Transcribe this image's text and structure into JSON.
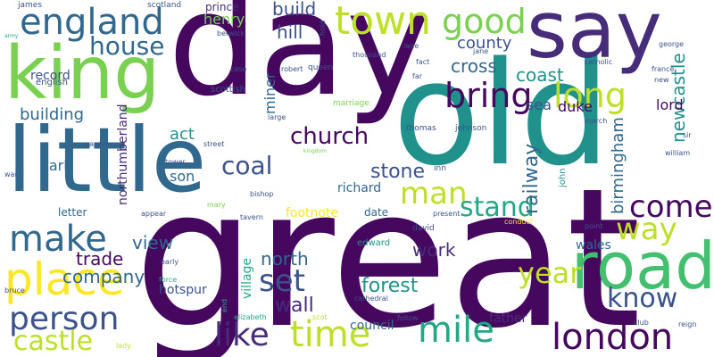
{
  "palette": {
    "dark_purple": "#46085f",
    "violet": "#472c7a",
    "indigo": "#3b528b",
    "slate_blue": "#31688e",
    "teal": "#21918c",
    "sea_green": "#22a884",
    "green": "#44bf70",
    "light_green": "#7ad151",
    "lime": "#bddf26",
    "yellow": "#fde725"
  },
  "words": [
    {
      "text": "great",
      "color": "#46085f"
    },
    {
      "text": "day",
      "color": "#46085f"
    },
    {
      "text": "old",
      "color": "#21918c"
    },
    {
      "text": "little",
      "color": "#31688e"
    },
    {
      "text": "say",
      "color": "#472c7a"
    },
    {
      "text": "king",
      "color": "#7ad151"
    },
    {
      "text": "road",
      "color": "#44bf70"
    },
    {
      "text": "england",
      "color": "#31688e"
    },
    {
      "text": "town",
      "color": "#bddf26"
    },
    {
      "text": "good",
      "color": "#7ad151"
    },
    {
      "text": "house",
      "color": "#31688e"
    },
    {
      "text": "bring",
      "color": "#46085f"
    },
    {
      "text": "long",
      "color": "#bddf26"
    },
    {
      "text": "make",
      "color": "#31688e"
    },
    {
      "text": "place",
      "color": "#fde725"
    },
    {
      "text": "person",
      "color": "#3b528b"
    },
    {
      "text": "castle",
      "color": "#bddf26"
    },
    {
      "text": "like",
      "color": "#472c7a"
    },
    {
      "text": "time",
      "color": "#bddf26"
    },
    {
      "text": "mile",
      "color": "#22a884"
    },
    {
      "text": "london",
      "color": "#46085f"
    },
    {
      "text": "know",
      "color": "#3b528b"
    },
    {
      "text": "come",
      "color": "#46085f"
    },
    {
      "text": "way",
      "color": "#bddf26"
    },
    {
      "text": "church",
      "color": "#46085f"
    },
    {
      "text": "man",
      "color": "#bddf26"
    },
    {
      "text": "stand",
      "color": "#22a884"
    },
    {
      "text": "set",
      "color": "#3b528b"
    },
    {
      "text": "year",
      "color": "#bddf26"
    },
    {
      "text": "coal",
      "color": "#3b528b"
    },
    {
      "text": "wall",
      "color": "#472c7a"
    },
    {
      "text": "stone",
      "color": "#3b528b"
    },
    {
      "text": "forest",
      "color": "#21918c"
    },
    {
      "text": "north",
      "color": "#31688e"
    },
    {
      "text": "work",
      "color": "#472c7a"
    },
    {
      "text": "view",
      "color": "#31688e"
    },
    {
      "text": "company",
      "color": "#31688e"
    },
    {
      "text": "trade",
      "color": "#46085f"
    },
    {
      "text": "railway",
      "color": "#31688e"
    },
    {
      "text": "cross",
      "color": "#31688e"
    },
    {
      "text": "coast",
      "color": "#21918c"
    },
    {
      "text": "newcastle",
      "color": "#21918c"
    },
    {
      "text": "birmingham",
      "color": "#31688e"
    },
    {
      "text": "county",
      "color": "#3b528b"
    },
    {
      "text": "build",
      "color": "#3b528b"
    },
    {
      "text": "hill",
      "color": "#3b528b"
    },
    {
      "text": "building",
      "color": "#31688e"
    },
    {
      "text": "record",
      "color": "#3b528b"
    },
    {
      "text": "miner",
      "color": "#31688e"
    },
    {
      "text": "henry",
      "color": "#7ad151"
    },
    {
      "text": "prince",
      "color": "#472c7a"
    },
    {
      "text": "act",
      "color": "#21918c"
    },
    {
      "text": "earl",
      "color": "#31688e"
    },
    {
      "text": "son",
      "color": "#31688e"
    },
    {
      "text": "lord",
      "color": "#46085f"
    },
    {
      "text": "sea",
      "color": "#3b528b"
    },
    {
      "text": "duke",
      "color": "#46085f"
    },
    {
      "text": "northumberland",
      "color": "#472c7a"
    },
    {
      "text": "village",
      "color": "#22a884"
    },
    {
      "text": "hotspur",
      "color": "#3b528b"
    },
    {
      "text": "letter",
      "color": "#31688e"
    },
    {
      "text": "footnote",
      "color": "#fde725"
    },
    {
      "text": "richard",
      "color": "#31688e"
    },
    {
      "text": "date",
      "color": "#31688e"
    },
    {
      "text": "council",
      "color": "#31688e"
    },
    {
      "text": "father",
      "color": "#472c7a"
    },
    {
      "text": "wales",
      "color": "#31688e"
    },
    {
      "text": "edward",
      "color": "#21918c"
    },
    {
      "text": "scottish",
      "color": "#3b528b"
    },
    {
      "text": "english",
      "color": "#3b528b"
    },
    {
      "text": "james",
      "color": "#3b528b"
    },
    {
      "text": "scotland",
      "color": "#3b528b"
    },
    {
      "text": "berwick",
      "color": "#3b528b"
    },
    {
      "text": "queen",
      "color": "#3b528b"
    },
    {
      "text": "robert",
      "color": "#3b528b"
    },
    {
      "text": "marriage",
      "color": "#7ad151"
    },
    {
      "text": "thomas",
      "color": "#3b528b"
    },
    {
      "text": "johnson",
      "color": "#3b528b"
    },
    {
      "text": "inn",
      "color": "#3b528b"
    },
    {
      "text": "john",
      "color": "#21918c"
    },
    {
      "text": "david",
      "color": "#3b528b"
    },
    {
      "text": "mary",
      "color": "#7ad151"
    },
    {
      "text": "bishop",
      "color": "#3b528b"
    },
    {
      "text": "tavern",
      "color": "#3b528b"
    },
    {
      "text": "appear",
      "color": "#3b528b"
    },
    {
      "text": "force",
      "color": "#22a884"
    },
    {
      "text": "early",
      "color": "#3b528b"
    },
    {
      "text": "elizabeth",
      "color": "#22a884"
    },
    {
      "text": "scot",
      "color": "#bddf26"
    },
    {
      "text": "follow",
      "color": "#3b528b"
    },
    {
      "text": "bruce",
      "color": "#3b528b"
    },
    {
      "text": "garden",
      "color": "#3b528b"
    },
    {
      "text": "tower",
      "color": "#3b528b"
    },
    {
      "text": "street",
      "color": "#3b528b"
    },
    {
      "text": "war",
      "color": "#3b528b"
    },
    {
      "text": "lady",
      "color": "#bddf26"
    },
    {
      "text": "club",
      "color": "#3b528b"
    },
    {
      "text": "reign",
      "color": "#3b528b"
    },
    {
      "text": "sir",
      "color": "#3b528b"
    },
    {
      "text": "william",
      "color": "#3b528b"
    },
    {
      "text": "march",
      "color": "#3b528b"
    },
    {
      "text": "george",
      "color": "#3b528b"
    },
    {
      "text": "france",
      "color": "#3b528b"
    },
    {
      "text": "catholic",
      "color": "#3b528b"
    },
    {
      "text": "jane",
      "color": "#3b528b"
    },
    {
      "text": "lane",
      "color": "#3b528b"
    },
    {
      "text": "fact",
      "color": "#3b528b"
    },
    {
      "text": "far",
      "color": "#3b528b"
    },
    {
      "text": "thousand",
      "color": "#3b528b"
    },
    {
      "text": "case",
      "color": "#3b528b"
    },
    {
      "text": "large",
      "color": "#3b528b"
    },
    {
      "text": "present",
      "color": "#3b528b"
    },
    {
      "text": "cathedral",
      "color": "#3b528b"
    },
    {
      "text": "point",
      "color": "#3b528b"
    },
    {
      "text": "conduct",
      "color": "#fde725"
    },
    {
      "text": "new",
      "color": "#3b528b"
    },
    {
      "text": "end",
      "color": "#22a884"
    },
    {
      "text": "hold",
      "color": "#3b528b"
    },
    {
      "text": "kingdom",
      "color": "#7ad151"
    },
    {
      "text": "army",
      "color": "#22a884"
    }
  ]
}
